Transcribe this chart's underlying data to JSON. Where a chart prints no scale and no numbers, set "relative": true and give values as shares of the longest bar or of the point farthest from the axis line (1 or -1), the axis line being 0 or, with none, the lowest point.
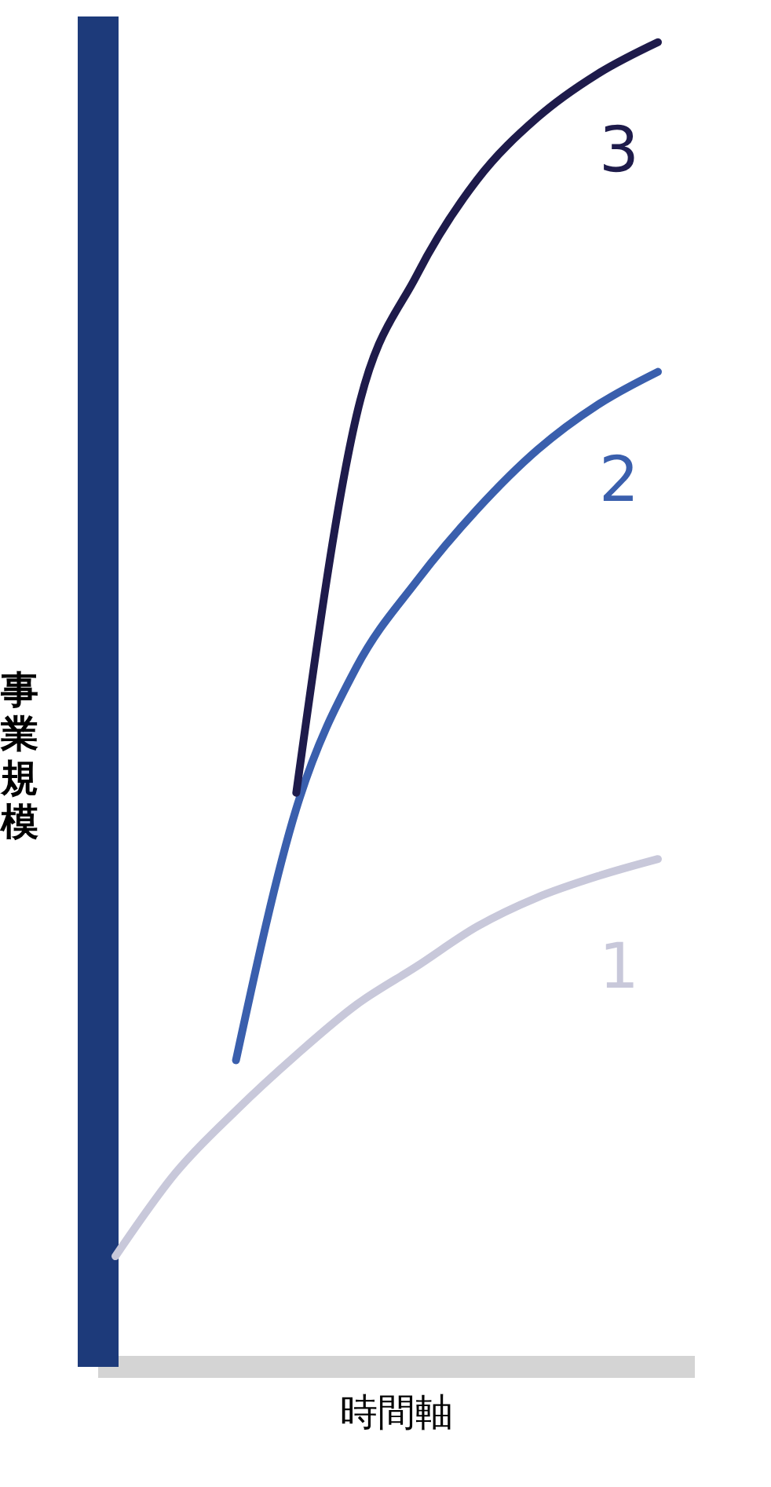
{
  "chart_data": {
    "type": "line",
    "relative": true,
    "xlabel": "時間軸",
    "ylabel": "事業規模",
    "categories": [
      null,
      null,
      null,
      null,
      null,
      null,
      null,
      null,
      null,
      null
    ],
    "series": [
      {
        "name": "1",
        "color": "#c8c8da",
        "values": [
          0.083,
          0.146,
          0.193,
          0.235,
          0.273,
          0.302,
          0.332,
          0.354,
          0.37,
          0.383
        ]
      },
      {
        "name": "2",
        "color": "#3a5fad",
        "values": [
          null,
          null,
          0.231,
          0.421,
          0.528,
          0.593,
          0.647,
          0.692,
          0.726,
          0.751
        ]
      },
      {
        "name": "3",
        "color": "#1e1b4b",
        "values": [
          null,
          null,
          null,
          0.433,
          0.718,
          0.824,
          0.896,
          0.943,
          0.976,
          1.0
        ]
      }
    ],
    "line_style": "solid",
    "marker": "none",
    "legend": false,
    "grid": false
  }
}
